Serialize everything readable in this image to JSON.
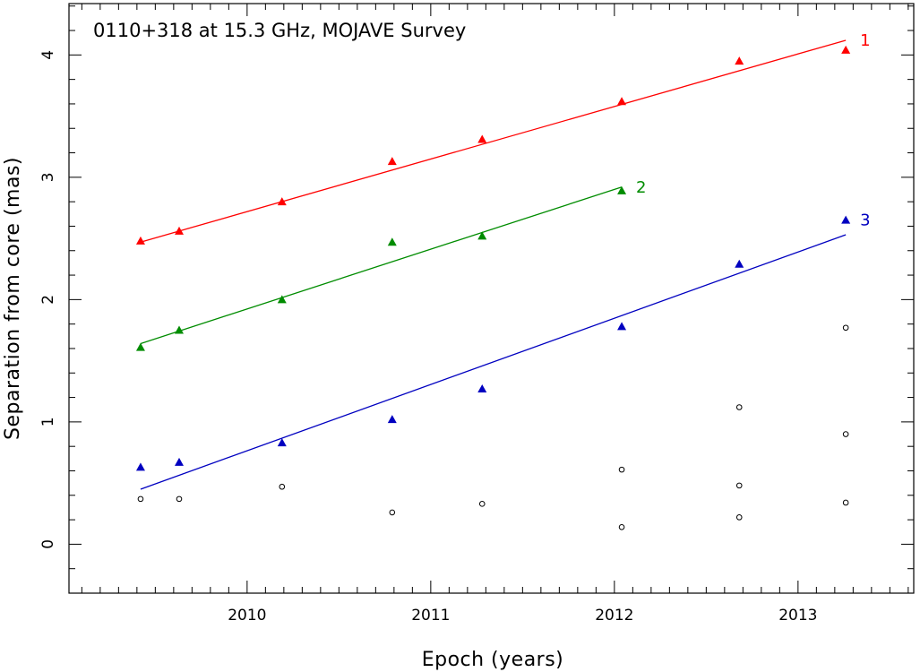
{
  "chart_data": {
    "type": "scatter",
    "title": "0110+318 at 15.3 GHz, MOJAVE Survey",
    "xlabel": "Epoch (years)",
    "ylabel": "Separation from core (mas)",
    "xlim": [
      2009.03,
      2013.63
    ],
    "ylim": [
      -0.4,
      4.42
    ],
    "xticks": [
      2010,
      2011,
      2012,
      2013
    ],
    "yticks": [
      0,
      1,
      2,
      3,
      4
    ],
    "grid": false,
    "legend": "none",
    "series": [
      {
        "name": "1",
        "color": "#ff0000",
        "marker": "triangle",
        "x": [
          2009.42,
          2009.63,
          2010.19,
          2010.79,
          2011.28,
          2012.04,
          2012.68,
          2013.26
        ],
        "y": [
          2.48,
          2.56,
          2.8,
          3.13,
          3.31,
          3.62,
          3.95,
          4.04
        ],
        "fit": {
          "x": [
            2009.42,
            2013.26
          ],
          "y": [
            2.47,
            4.12
          ]
        }
      },
      {
        "name": "2",
        "color": "#008c00",
        "marker": "triangle",
        "x": [
          2009.42,
          2009.63,
          2010.19,
          2010.79,
          2011.28,
          2012.04
        ],
        "y": [
          1.61,
          1.75,
          2.0,
          2.47,
          2.52,
          2.89
        ],
        "fit": {
          "x": [
            2009.42,
            2012.04
          ],
          "y": [
            1.64,
            2.92
          ]
        }
      },
      {
        "name": "3",
        "color": "#0000c0",
        "marker": "triangle",
        "x": [
          2009.42,
          2009.63,
          2010.19,
          2010.79,
          2011.28,
          2012.04,
          2012.68,
          2013.26
        ],
        "y": [
          0.63,
          0.67,
          0.83,
          1.02,
          1.27,
          1.78,
          2.29,
          2.65
        ],
        "fit": {
          "x": [
            2009.42,
            2013.26
          ],
          "y": [
            0.45,
            2.53
          ]
        }
      },
      {
        "color": "#000000",
        "marker": "open-circle",
        "x": [
          2009.42,
          2009.63,
          2010.19,
          2010.79,
          2011.28,
          2012.04,
          2012.04,
          2012.68,
          2012.68,
          2012.68,
          2013.26,
          2013.26,
          2013.26
        ],
        "y": [
          0.37,
          0.37,
          0.47,
          0.26,
          0.33,
          0.14,
          0.61,
          0.22,
          0.48,
          1.12,
          0.34,
          0.9,
          1.77
        ]
      }
    ]
  }
}
